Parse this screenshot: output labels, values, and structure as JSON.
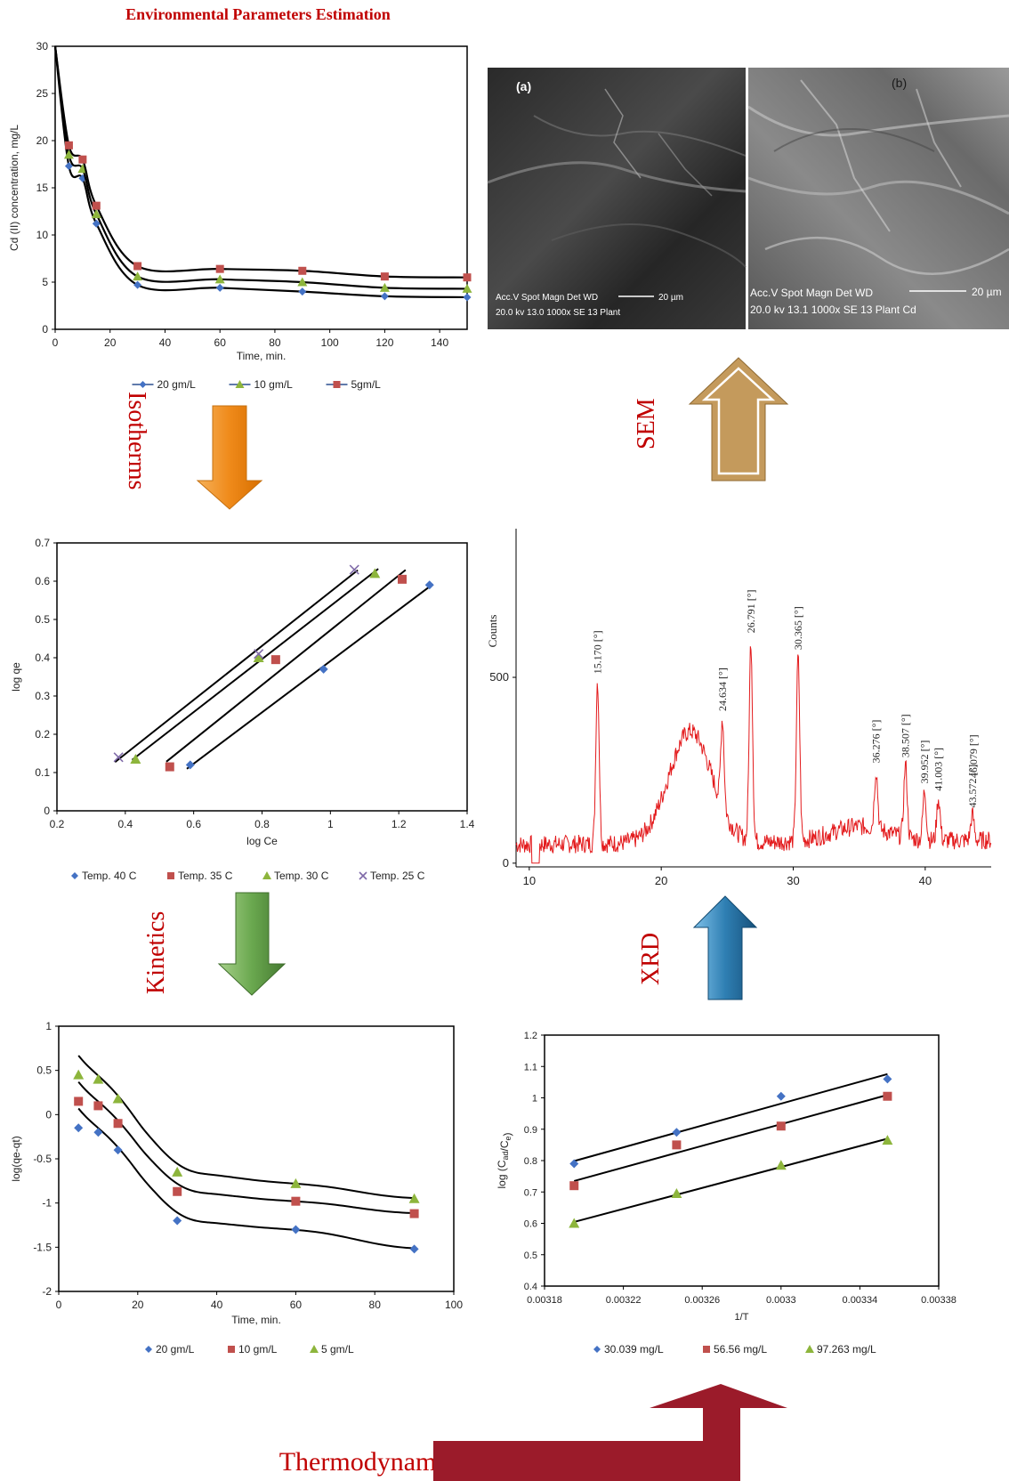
{
  "header": {
    "title": "Environmental Parameters Estimation"
  },
  "footer": {
    "title": "Thermodynamic Parameters Estimation"
  },
  "flow_labels": {
    "isotherms": "Isotherms",
    "kinetics": "Kinetics",
    "sem": "SEM",
    "xrd": "XRD"
  },
  "colors": {
    "title_red": "#c00000",
    "isotherm_arrow": "#ef8f1e",
    "kinetics_arrow": "#6aa84f",
    "sem_arrow": "#c49a5c",
    "xrd_arrow": "#2f7fb3",
    "thermo_arrow": "#9b1b2a",
    "xrd_line": "#e31a1c",
    "blue": "#4472c4",
    "green": "#8db53c",
    "red": "#c0504d",
    "purple": "#7f6aa8"
  },
  "sem": {
    "panel_a": {
      "label": "(a)",
      "info_line1": "Acc.V  Spot Magn  Det  WD",
      "info_line2": "20.0 kv  13.0  1000x  SE  13   Plant",
      "scale": "20 µm"
    },
    "panel_b": {
      "label": "(b)",
      "info_line1": "Acc.V  Spot Magn  Det  WD",
      "info_line2": "20.0 kv  13.1  1000x  SE  13   Plant Cd",
      "scale": "20 µm"
    }
  },
  "chart_data": [
    {
      "id": "cd_time",
      "type": "line",
      "title": "",
      "xlabel": "Time, min.",
      "ylabel": "Cd (II) concentration, mg/L",
      "xlim": [
        0,
        150
      ],
      "ylim": [
        0,
        30
      ],
      "xticks": [
        0,
        20,
        40,
        60,
        80,
        100,
        120,
        140
      ],
      "yticks": [
        0,
        5,
        10,
        15,
        20,
        25,
        30
      ],
      "legend_position": "bottom",
      "series": [
        {
          "name": "20 gm/L",
          "marker": "diamond",
          "color": "#4472c4",
          "x": [
            5,
            10,
            15,
            30,
            60,
            90,
            120,
            150
          ],
          "y": [
            17.3,
            16.0,
            11.2,
            4.7,
            4.4,
            4.0,
            3.5,
            3.4
          ]
        },
        {
          "name": "10 gm/L",
          "marker": "triangle",
          "color": "#8db53c",
          "x": [
            5,
            10,
            15,
            30,
            60,
            90,
            120,
            150
          ],
          "y": [
            18.5,
            17.0,
            12.2,
            5.6,
            5.3,
            5.0,
            4.4,
            4.3
          ]
        },
        {
          "name": "5gm/L",
          "marker": "square",
          "color": "#c0504d",
          "x": [
            5,
            10,
            15,
            30,
            60,
            90,
            120,
            150
          ],
          "y": [
            19.5,
            18.0,
            13.1,
            6.7,
            6.4,
            6.2,
            5.6,
            5.5
          ]
        }
      ]
    },
    {
      "id": "isotherm",
      "type": "scatter",
      "title": "",
      "xlabel": "log Ce",
      "ylabel": "log qe",
      "xlim": [
        0.2,
        1.4
      ],
      "ylim": [
        0,
        0.7
      ],
      "xticks": [
        0.2,
        0.4,
        0.6,
        0.8,
        1.0,
        1.2,
        1.4
      ],
      "yticks": [
        0,
        0.1,
        0.2,
        0.3,
        0.4,
        0.5,
        0.6,
        0.7
      ],
      "tick_labels_x": [
        "0.2",
        "0.4",
        "0.6",
        "0.8",
        "1",
        "1.2",
        "1.4"
      ],
      "tick_labels_y": [
        "0",
        "0.1",
        "0.2",
        "0.3",
        "0.4",
        "0.5",
        "0.6",
        "0.7"
      ],
      "legend_position": "bottom",
      "series": [
        {
          "name": "Temp. 40 C",
          "marker": "diamond",
          "color": "#4472c4",
          "x": [
            0.59,
            0.98,
            1.29
          ],
          "y": [
            0.12,
            0.37,
            0.59
          ]
        },
        {
          "name": "Temp. 35 C",
          "marker": "square",
          "color": "#c0504d",
          "x": [
            0.53,
            0.84,
            1.21
          ],
          "y": [
            0.115,
            0.395,
            0.605
          ]
        },
        {
          "name": "Temp. 30 C",
          "marker": "triangle",
          "color": "#8db53c",
          "x": [
            0.43,
            0.79,
            1.13
          ],
          "y": [
            0.135,
            0.4,
            0.62
          ]
        },
        {
          "name": "Temp. 25 C",
          "marker": "x",
          "color": "#7f6aa8",
          "x": [
            0.38,
            0.79,
            1.07
          ],
          "y": [
            0.14,
            0.41,
            0.63
          ]
        }
      ]
    },
    {
      "id": "xrd",
      "type": "line",
      "title": "",
      "xlabel": "",
      "ylabel": "Counts",
      "xlim": [
        9,
        45
      ],
      "ylim": [
        -10,
        900
      ],
      "xticks": [
        10,
        20,
        30,
        40
      ],
      "yticks": [
        0,
        500
      ],
      "peaks": [
        {
          "x": 15.17,
          "y": 490,
          "label": "15.170 [°]"
        },
        {
          "x": 24.634,
          "y": 390,
          "label": "24.634 [°]"
        },
        {
          "x": 26.791,
          "y": 600,
          "label": "26.791 [°]"
        },
        {
          "x": 30.365,
          "y": 555,
          "label": "30.365 [°]"
        },
        {
          "x": 36.276,
          "y": 250,
          "label": "36.276 [°]"
        },
        {
          "x": 38.507,
          "y": 265,
          "label": "38.507 [°]"
        },
        {
          "x": 39.952,
          "y": 195,
          "label": "39.952 [°]"
        },
        {
          "x": 41.003,
          "y": 175,
          "label": "41.003 [°]"
        },
        {
          "x": 43.572,
          "y": 130,
          "label": "43.572 [°]"
        },
        {
          "x": 46.079,
          "y": 210,
          "label": "46.079 [°]"
        }
      ]
    },
    {
      "id": "kinetics",
      "type": "scatter",
      "title": "",
      "xlabel": "Time, min.",
      "ylabel": "log(qe-qt)",
      "xlim": [
        0,
        100
      ],
      "ylim": [
        -2,
        1
      ],
      "xticks": [
        0,
        20,
        40,
        60,
        80,
        100
      ],
      "yticks": [
        -2,
        -1.5,
        -1,
        -0.5,
        0,
        0.5,
        1
      ],
      "legend_position": "bottom",
      "series": [
        {
          "name": "20 gm/L",
          "marker": "diamond",
          "color": "#4472c4",
          "x": [
            5,
            10,
            15,
            30,
            60,
            90
          ],
          "y": [
            -0.15,
            -0.2,
            -0.4,
            -1.2,
            -1.3,
            -1.52
          ]
        },
        {
          "name": "10 gm/L",
          "marker": "square",
          "color": "#c0504d",
          "x": [
            5,
            10,
            15,
            30,
            60,
            90
          ],
          "y": [
            0.15,
            0.1,
            -0.1,
            -0.87,
            -0.98,
            -1.12
          ]
        },
        {
          "name": "5 gm/L",
          "marker": "triangle",
          "color": "#8db53c",
          "x": [
            5,
            10,
            15,
            30,
            60,
            90
          ],
          "y": [
            0.45,
            0.4,
            0.18,
            -0.65,
            -0.78,
            -0.95
          ]
        }
      ]
    },
    {
      "id": "thermo",
      "type": "scatter",
      "title": "",
      "xlabel": "1/T",
      "ylabel": "log (C_ad/C_e)",
      "ylabel_main": "log (C",
      "ylabel_sub1": "ad",
      "ylabel_mid": "/C",
      "ylabel_sub2": "e",
      "ylabel_end": ")",
      "xlim": [
        0.00318,
        0.00338
      ],
      "ylim": [
        0.4,
        1.2
      ],
      "xticks": [
        0.00318,
        0.00322,
        0.00326,
        0.0033,
        0.00334,
        0.00338
      ],
      "tick_labels_x": [
        "0.00318",
        "0.00322",
        "0.00326",
        "0.0033",
        "0.00334",
        "0.00338"
      ],
      "yticks": [
        0.4,
        0.5,
        0.6,
        0.7,
        0.8,
        0.9,
        1.0,
        1.1,
        1.2
      ],
      "tick_labels_y": [
        "0.4",
        "0.5",
        "0.6",
        "0.7",
        "0.8",
        "0.9",
        "1",
        "1.1",
        "1.2"
      ],
      "legend_position": "bottom",
      "series": [
        {
          "name": "30.039 mg/L",
          "marker": "diamond",
          "color": "#4472c4",
          "x": [
            0.003195,
            0.003247,
            0.0033,
            0.003354
          ],
          "y": [
            0.79,
            0.89,
            1.005,
            1.06
          ]
        },
        {
          "name": "56.56 mg/L",
          "marker": "square",
          "color": "#c0504d",
          "x": [
            0.003195,
            0.003247,
            0.0033,
            0.003354
          ],
          "y": [
            0.72,
            0.85,
            0.91,
            1.005
          ]
        },
        {
          "name": "97.263 mg/L",
          "marker": "triangle",
          "color": "#8db53c",
          "x": [
            0.003195,
            0.003247,
            0.0033,
            0.003354
          ],
          "y": [
            0.6,
            0.695,
            0.785,
            0.865
          ]
        }
      ]
    }
  ]
}
